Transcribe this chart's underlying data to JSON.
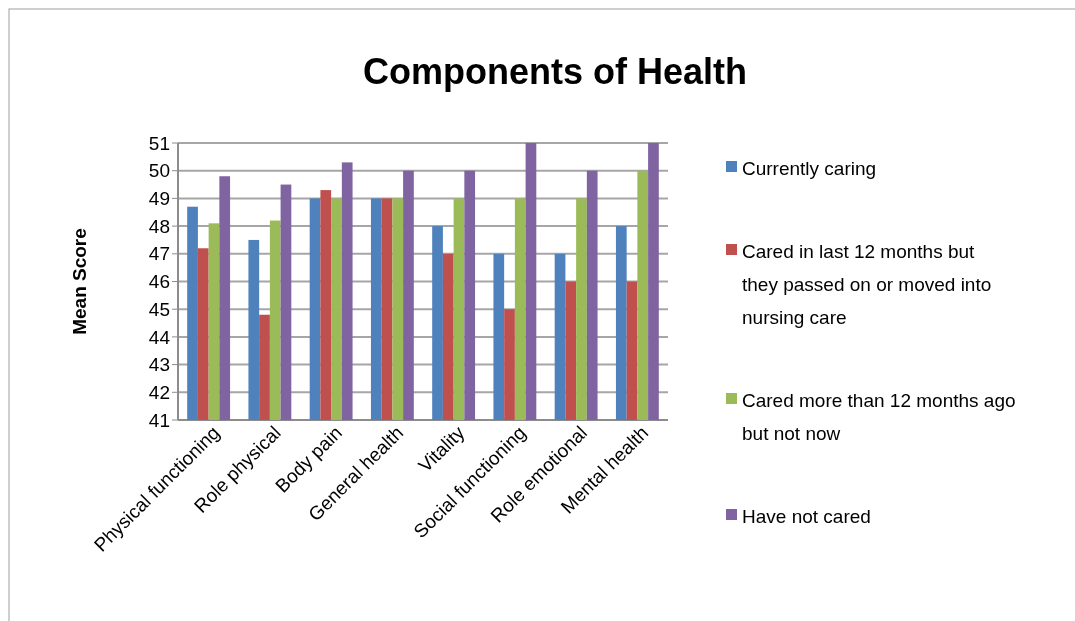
{
  "chart_data": {
    "type": "bar",
    "title": "Components of Health",
    "ylabel": "Mean Score",
    "categories": [
      "Physical functioning",
      "Role physical",
      "Body pain",
      "General health",
      "Vitality",
      "Social functioning",
      "Role emotional",
      "Mental health"
    ],
    "series": [
      {
        "name": "Currently caring",
        "color": "#4f81bd",
        "values": [
          48.7,
          47.5,
          49,
          49,
          48,
          47,
          47,
          48
        ]
      },
      {
        "name": "Cared in last 12 months but they passed on or moved into nursing care",
        "color": "#c0504d",
        "values": [
          47.2,
          44.8,
          49.3,
          49,
          47,
          45,
          46,
          46
        ]
      },
      {
        "name": "Cared more than 12 months ago but not now",
        "color": "#9bbb59",
        "values": [
          48.1,
          48.2,
          49,
          49,
          49,
          49,
          49,
          50
        ]
      },
      {
        "name": "Have not cared",
        "color": "#8064a2",
        "values": [
          49.8,
          49.5,
          50.3,
          50,
          50,
          51,
          50,
          51
        ]
      }
    ],
    "ylim": [
      41,
      51
    ],
    "yticks": [
      41,
      42,
      43,
      44,
      45,
      46,
      47,
      48,
      49,
      50,
      51
    ],
    "grid": "y",
    "legend": "right"
  }
}
